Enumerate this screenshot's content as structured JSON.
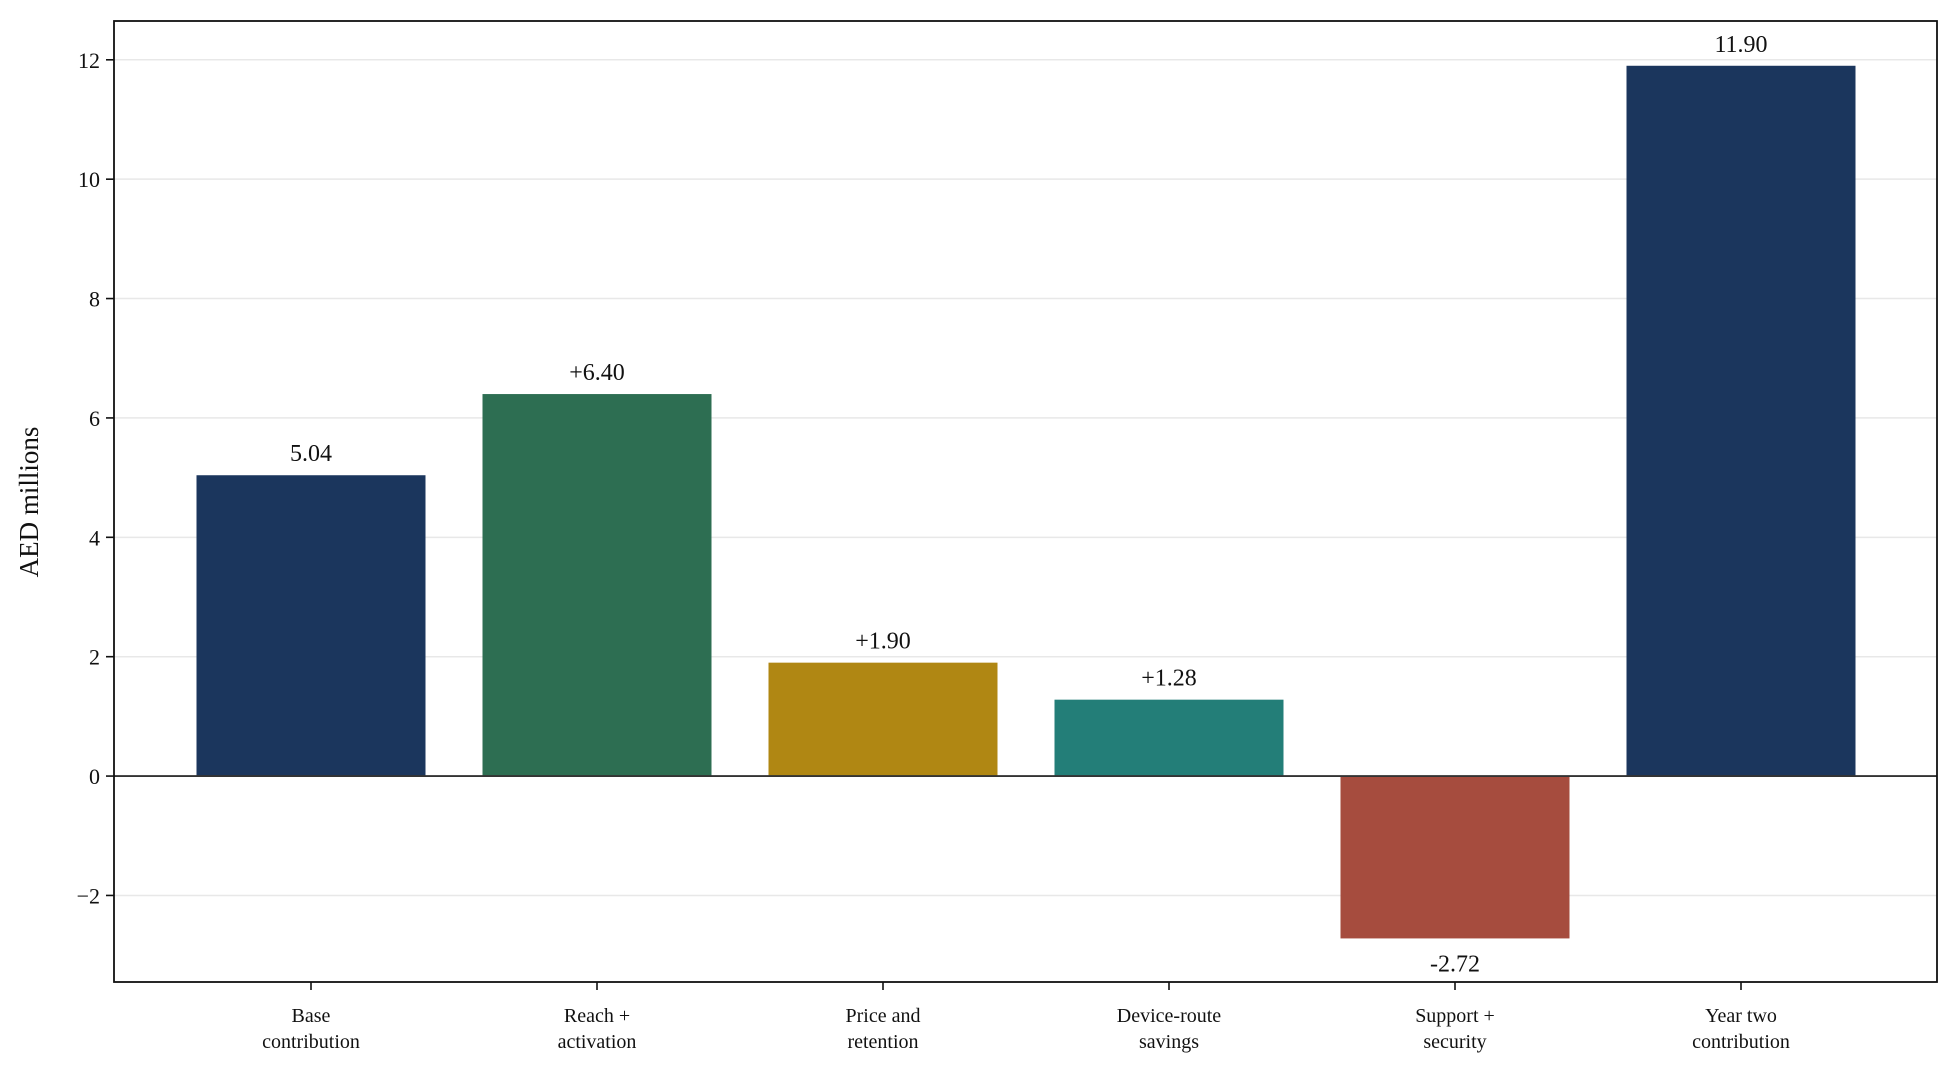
{
  "chart_data": {
    "type": "bar",
    "title": "",
    "xlabel": "",
    "ylabel": "AED millions",
    "ylim": [
      -3.45,
      12.65
    ],
    "yticks": [
      -2,
      0,
      2,
      4,
      6,
      8,
      10,
      12
    ],
    "ytick_labels": [
      "−2",
      "0",
      "2",
      "4",
      "6",
      "8",
      "10",
      "12"
    ],
    "grid": "horizontal",
    "categories": [
      [
        "Base",
        "contribution"
      ],
      [
        "Reach +",
        "activation"
      ],
      [
        "Price and",
        "retention"
      ],
      [
        "Device-route",
        "savings"
      ],
      [
        "Support +",
        "security"
      ],
      [
        "Year two",
        "contribution"
      ]
    ],
    "values": [
      5.04,
      6.4,
      1.9,
      1.28,
      -2.72,
      11.9
    ],
    "data_labels": [
      "5.04",
      "+6.40",
      "+1.90",
      "+1.28",
      "-2.72",
      "11.90"
    ],
    "colors": [
      "#1b365d",
      "#2d6e52",
      "#b08713",
      "#237e78",
      "#a64c3e",
      "#1b365d"
    ],
    "zero_line_color": "#333333",
    "grid_color": "#e8e8e8"
  }
}
